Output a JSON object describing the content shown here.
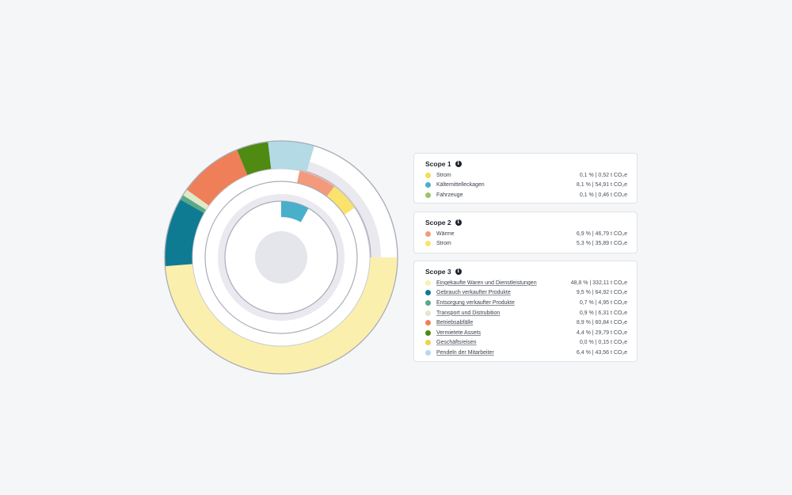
{
  "chart_data": {
    "type": "pie",
    "rings": [
      {
        "ring": "scope3",
        "segments": [
          {
            "name": "Eingekaufte Waren und Dienstleistungen",
            "value": 48.8,
            "color": "#fbefad"
          },
          {
            "name": "Gebrauch verkaufter Produkte",
            "value": 9.5,
            "color": "#0e7b93"
          },
          {
            "name": "Entsorgung verkaufter Produkte",
            "value": 0.7,
            "color": "#5aa985"
          },
          {
            "name": "Transport und Distrubition",
            "value": 0.9,
            "color": "#dfe8c8"
          },
          {
            "name": "Betriebsabfälle",
            "value": 8.9,
            "color": "#ee7f58"
          },
          {
            "name": "Vermietete Assets",
            "value": 4.4,
            "color": "#4f8a12"
          },
          {
            "name": "Pendeln der Mitarbeiter",
            "value": 6.4,
            "color": "#b4dbe5"
          }
        ]
      },
      {
        "ring": "scope2",
        "segments": [
          {
            "name": "Wärme",
            "value": 6.9,
            "color": "#f39a7c"
          },
          {
            "name": "Strom",
            "value": 5.3,
            "color": "#fbe36b"
          }
        ]
      },
      {
        "ring": "scope1",
        "segments": [
          {
            "name": "Kältemittelleckagen",
            "value": 8.1,
            "color": "#4aafca"
          }
        ]
      }
    ],
    "total_percent": 100
  },
  "legend": {
    "scope1": {
      "title": "Scope 1",
      "items": [
        {
          "label": "Strom",
          "value": "0,1 % | 0,52 t CO₂e",
          "color": "#f6dc53",
          "link": false
        },
        {
          "label": "Kältemittelleckagen",
          "value": "8,1 % | 54,91 t CO₂e",
          "color": "#4aafca",
          "link": false
        },
        {
          "label": "Fahrzeuge",
          "value": "0,1 % | 0,46 t CO₂e",
          "color": "#9cc46a",
          "link": false
        }
      ]
    },
    "scope2": {
      "title": "Scope 2",
      "items": [
        {
          "label": "Wärme",
          "value": "6,9 % | 46,79 t CO₂e",
          "color": "#f39a7c",
          "link": false
        },
        {
          "label": "Strom",
          "value": "5,3 % | 35,89 t CO₂e",
          "color": "#fbe36b",
          "link": false
        }
      ]
    },
    "scope3": {
      "title": "Scope 3",
      "items": [
        {
          "label": "Eingekaufte Waren und Dienstleistungen",
          "value": "48,8 % | 332,11 t CO₂e",
          "color": "#fbefad",
          "link": true
        },
        {
          "label": "Gebrauch verkaufter Produkte",
          "value": "9,5 % | 64,92 t CO₂e",
          "color": "#0e7b93",
          "link": true
        },
        {
          "label": "Entsorgung verkaufter Produkte",
          "value": "0,7 % | 4,95 t CO₂e",
          "color": "#5aa985",
          "link": true
        },
        {
          "label": "Transport und Distrubition",
          "value": "0,9 % | 6,31 t CO₂e",
          "color": "#dfe8c8",
          "link": true
        },
        {
          "label": "Betriebsabfälle",
          "value": "8,9 % | 60,84 t CO₂e",
          "color": "#ee7f58",
          "link": true
        },
        {
          "label": "Vermietete Assets",
          "value": "4,4 % | 29,79 t CO₂e",
          "color": "#4f8a12",
          "link": true
        },
        {
          "label": "Geschäftsreisen",
          "value": "0,0 % | 0,15 t CO₂e",
          "color": "#f2d24a",
          "link": true
        },
        {
          "label": "Pendeln der Mitarbeiter",
          "value": "6,4 % | 43,56 t CO₂e",
          "color": "#b4dbe5",
          "link": true
        }
      ]
    }
  },
  "info_icon": "info-icon"
}
